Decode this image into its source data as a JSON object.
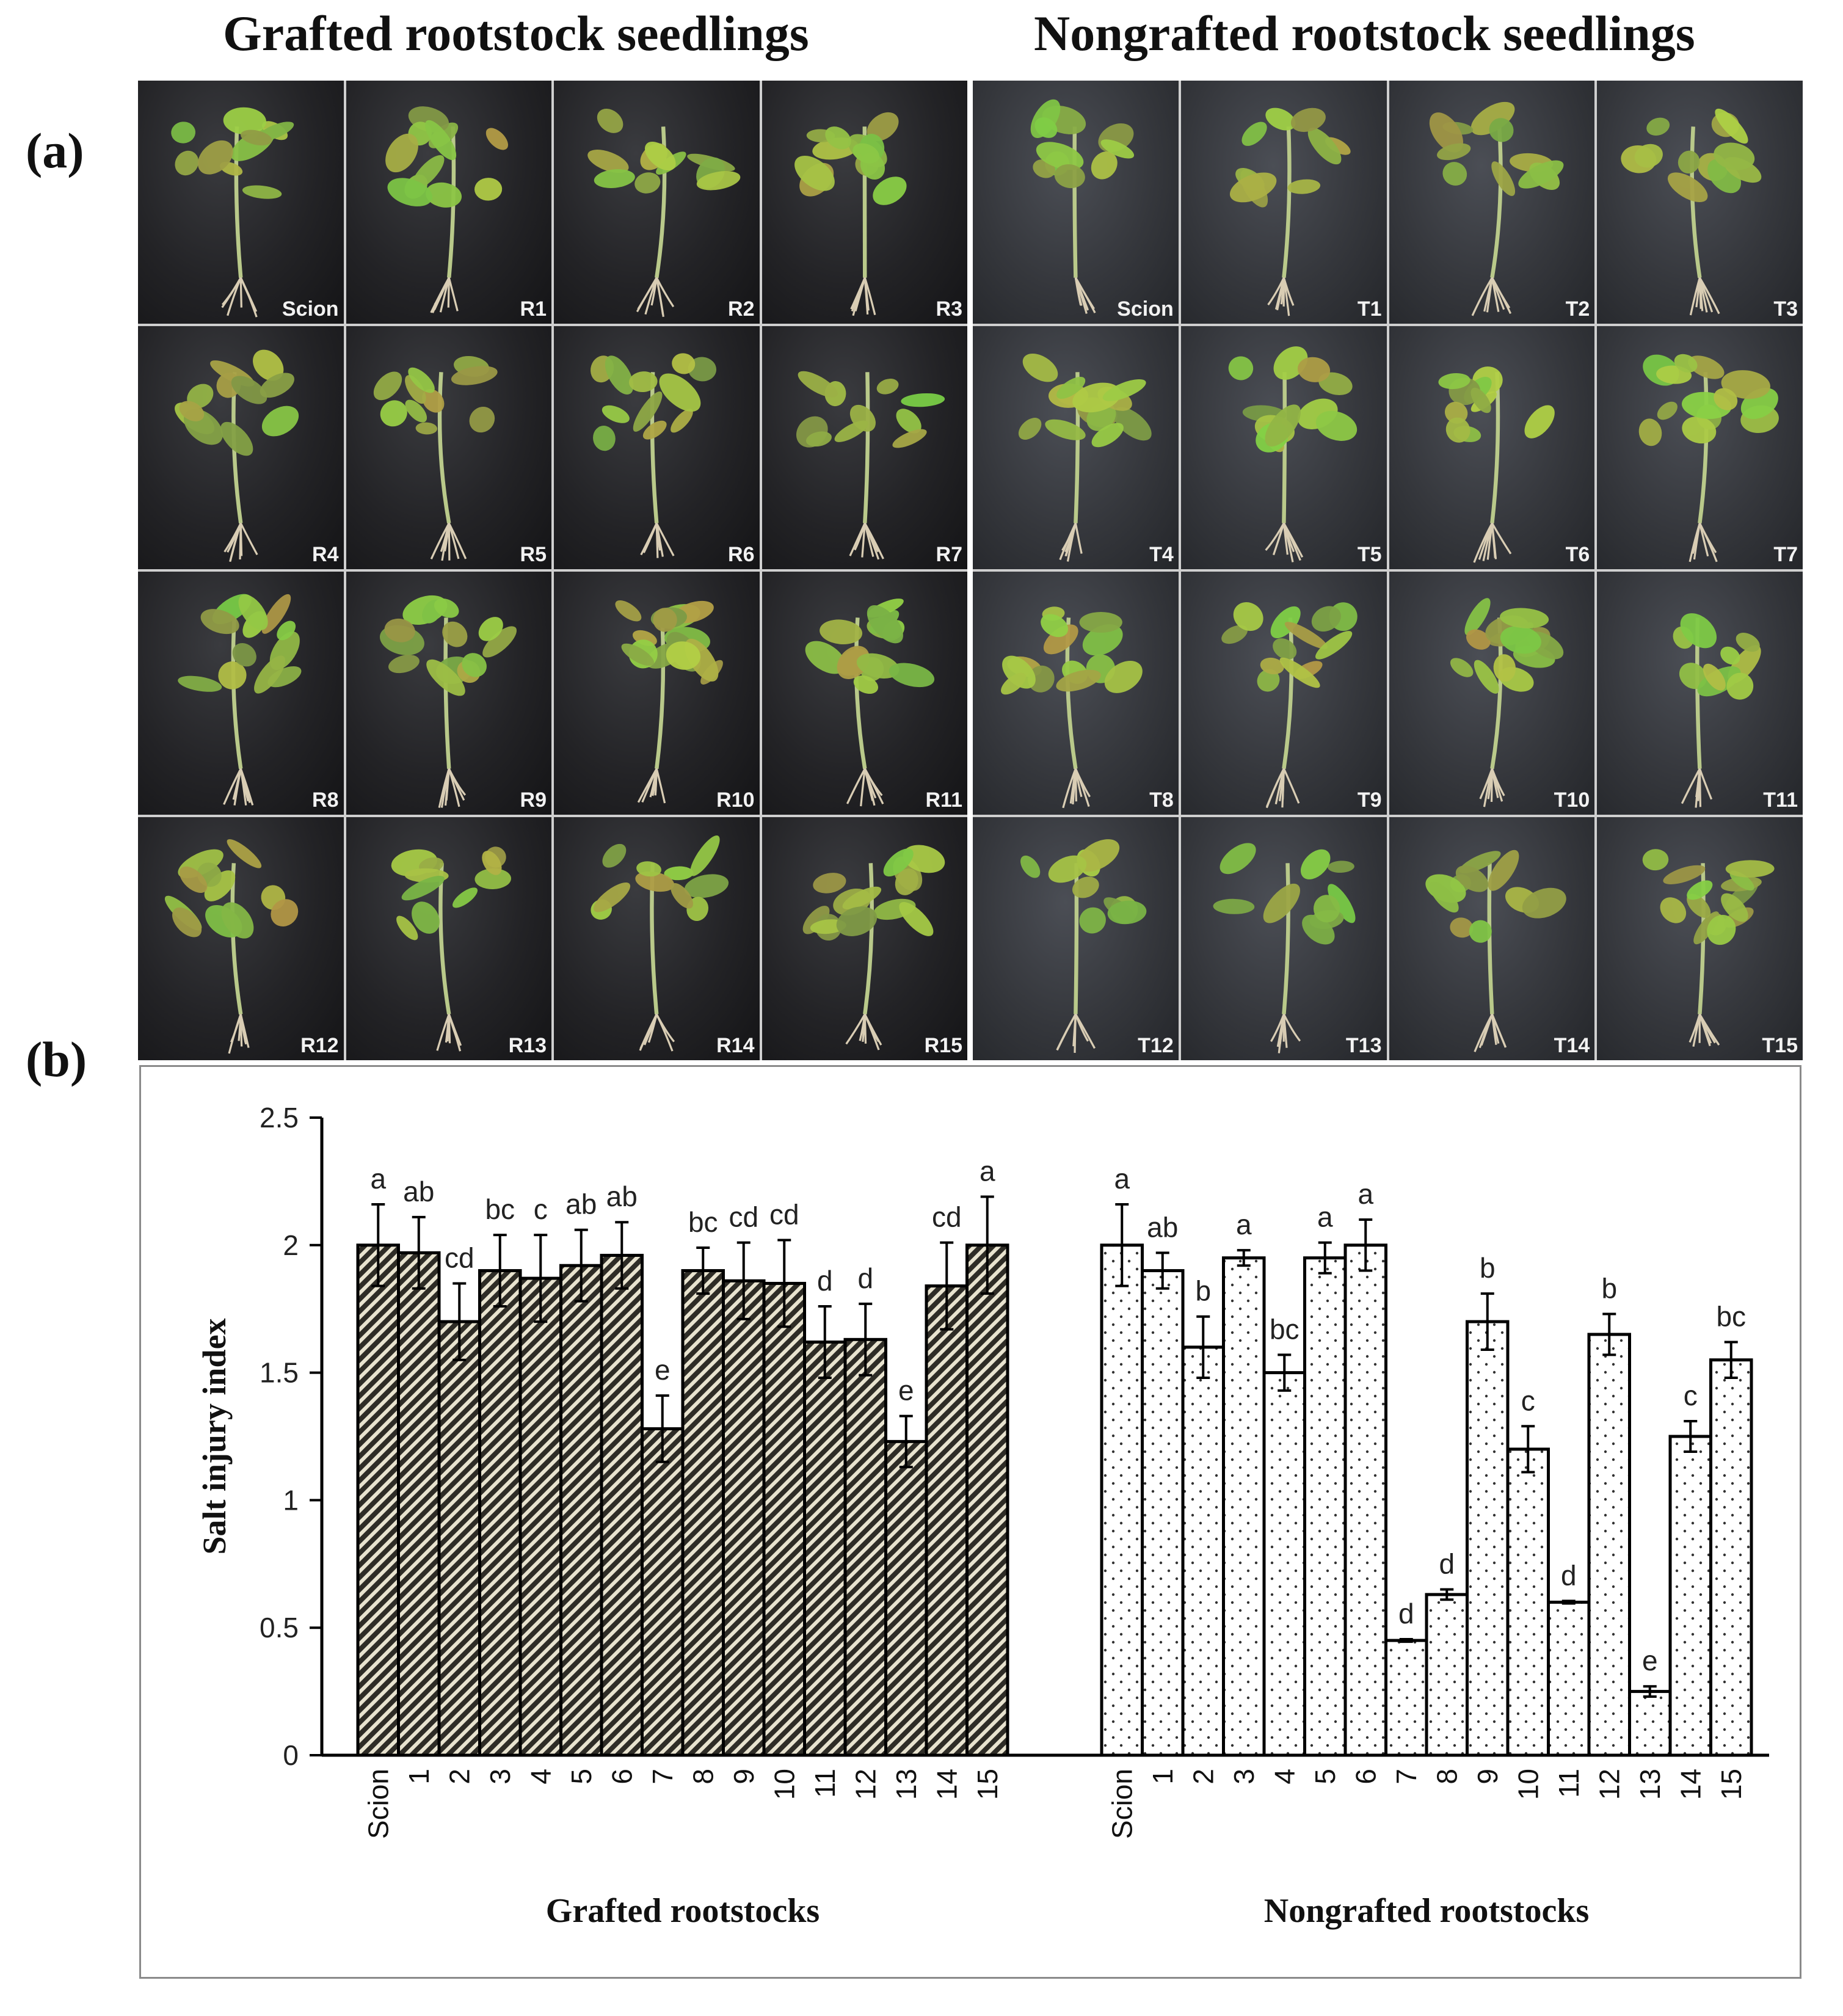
{
  "panel_a": {
    "letter": "(a)",
    "left_title": "Grafted rootstock seedlings",
    "right_title": "Nongrafted rootstock seedlings",
    "grafted_labels": [
      "Scion",
      "R1",
      "R2",
      "R3",
      "R4",
      "R5",
      "R6",
      "R7",
      "R8",
      "R9",
      "R10",
      "R11",
      "R12",
      "R13",
      "R14",
      "R15"
    ],
    "nongrafted_labels": [
      "Scion",
      "T1",
      "T2",
      "T3",
      "T4",
      "T5",
      "T6",
      "T7",
      "T8",
      "T9",
      "T10",
      "T11",
      "T12",
      "T13",
      "T14",
      "T15"
    ]
  },
  "panel_b": {
    "letter": "(b)"
  },
  "chart_data": {
    "type": "bar",
    "ylabel": "Salt injury index",
    "ylim": [
      0,
      2.5
    ],
    "yticks": [
      "0",
      "0.5",
      "1",
      "1.5",
      "2",
      "2.5"
    ],
    "grid": false,
    "groups": [
      {
        "name": "Grafted rootstocks",
        "categories": [
          "Scion",
          "1",
          "2",
          "3",
          "4",
          "5",
          "6",
          "7",
          "8",
          "9",
          "10",
          "11",
          "12",
          "13",
          "14",
          "15"
        ],
        "values": [
          2.0,
          1.97,
          1.7,
          1.9,
          1.87,
          1.92,
          1.96,
          1.28,
          1.9,
          1.86,
          1.85,
          1.62,
          1.63,
          1.23,
          1.84,
          2.0
        ],
        "errors": [
          0.16,
          0.14,
          0.15,
          0.14,
          0.17,
          0.14,
          0.13,
          0.13,
          0.09,
          0.15,
          0.17,
          0.14,
          0.14,
          0.1,
          0.17,
          0.19
        ],
        "letters": [
          "a",
          "ab",
          "cd",
          "bc",
          "c",
          "ab",
          "ab",
          "e",
          "bc",
          "cd",
          "cd",
          "d",
          "d",
          "e",
          "cd",
          "a"
        ],
        "pattern": "hatched"
      },
      {
        "name": "Nongrafted rootstocks",
        "categories": [
          "Scion",
          "1",
          "2",
          "3",
          "4",
          "5",
          "6",
          "7",
          "8",
          "9",
          "10",
          "11",
          "12",
          "13",
          "14",
          "15"
        ],
        "values": [
          2.0,
          1.9,
          1.6,
          1.95,
          1.5,
          1.95,
          2.0,
          0.45,
          0.63,
          1.7,
          1.2,
          0.6,
          1.65,
          0.25,
          1.25,
          1.55
        ],
        "errors": [
          0.16,
          0.07,
          0.12,
          0.03,
          0.07,
          0.06,
          0.1,
          0.005,
          0.02,
          0.11,
          0.09,
          0.005,
          0.08,
          0.02,
          0.06,
          0.07
        ],
        "letters": [
          "a",
          "ab",
          "b",
          "a",
          "bc",
          "a",
          "a",
          "d",
          "d",
          "b",
          "c",
          "d",
          "b",
          "e",
          "c",
          "bc"
        ],
        "pattern": "dotted"
      }
    ]
  }
}
